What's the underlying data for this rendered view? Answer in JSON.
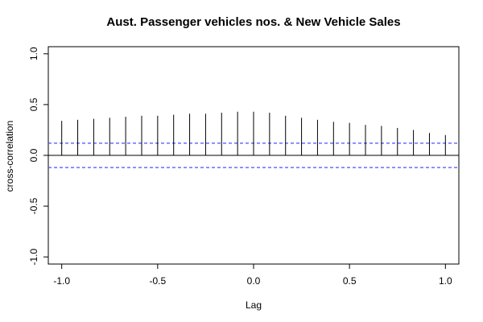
{
  "chart_data": {
    "type": "bar",
    "title": "Aust. Passenger vehicles nos. & New Vehicle Sales",
    "xlabel": "Lag",
    "ylabel": "cross-correlation",
    "xlim": [
      -1.07,
      1.07
    ],
    "ylim": [
      -1.07,
      1.07
    ],
    "x_ticks": [
      -1.0,
      -0.5,
      0.0,
      0.5,
      1.0
    ],
    "x_tick_labels": [
      "-1.0",
      "-0.5",
      "0.0",
      "0.5",
      "1.0"
    ],
    "y_ticks": [
      -1.0,
      -0.5,
      0.0,
      0.5,
      1.0
    ],
    "y_tick_labels": [
      "-1.0",
      "-0.5",
      "0.0",
      "0.5",
      "1.0"
    ],
    "lags": [
      -1.0,
      -0.9167,
      -0.8333,
      -0.75,
      -0.6667,
      -0.5833,
      -0.5,
      -0.4167,
      -0.3333,
      -0.25,
      -0.1667,
      -0.0833,
      0.0,
      0.0833,
      0.1667,
      0.25,
      0.3333,
      0.4167,
      0.5,
      0.5833,
      0.6667,
      0.75,
      0.8333,
      0.9167,
      1.0
    ],
    "values": [
      0.34,
      0.35,
      0.36,
      0.37,
      0.38,
      0.39,
      0.39,
      0.4,
      0.41,
      0.41,
      0.42,
      0.43,
      0.43,
      0.42,
      0.39,
      0.37,
      0.35,
      0.33,
      0.32,
      0.3,
      0.29,
      0.27,
      0.25,
      0.22,
      0.2
    ],
    "confidence_bound": 0.12,
    "confidence_color": "#4d4dff",
    "grid": false
  }
}
